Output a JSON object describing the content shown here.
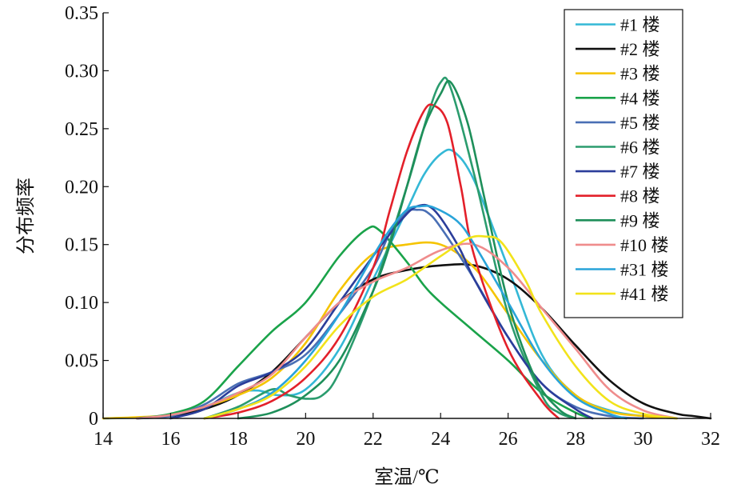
{
  "chart_data": {
    "type": "line",
    "xlabel": "室温/℃",
    "ylabel": "分布频率",
    "xlim": [
      14,
      32
    ],
    "ylim": [
      0,
      0.35
    ],
    "x_ticks": [
      "14",
      "16",
      "18",
      "20",
      "22",
      "24",
      "26",
      "28",
      "30",
      "32"
    ],
    "y_ticks": [
      "0",
      "0.05",
      "0.10",
      "0.15",
      "0.20",
      "0.25",
      "0.30",
      "0.35"
    ],
    "x_tick_values": [
      14,
      16,
      18,
      20,
      22,
      24,
      26,
      28,
      30,
      32
    ],
    "y_tick_values": [
      0,
      0.05,
      0.1,
      0.15,
      0.2,
      0.25,
      0.3,
      0.35
    ],
    "legend_position": "top-right",
    "grid": false,
    "series": [
      {
        "name": "#1 楼",
        "color": "#34b8d6",
        "x": [
          14,
          16,
          17,
          18,
          18.6,
          19.2,
          20,
          21,
          22,
          23,
          23.5,
          24,
          24.4,
          25,
          26,
          27,
          28,
          29,
          30,
          31
        ],
        "y": [
          0,
          0.002,
          0.01,
          0.022,
          0.024,
          0.02,
          0.025,
          0.06,
          0.12,
          0.18,
          0.21,
          0.228,
          0.23,
          0.205,
          0.13,
          0.055,
          0.02,
          0.007,
          0.002,
          0
        ]
      },
      {
        "name": "#2 楼",
        "color": "#111111",
        "x": [
          15,
          16,
          17,
          18,
          19,
          20,
          21,
          22,
          23,
          24,
          25,
          26,
          27,
          28,
          29,
          30,
          31,
          31.5,
          32
        ],
        "y": [
          0,
          0.002,
          0.008,
          0.02,
          0.04,
          0.07,
          0.1,
          0.12,
          0.128,
          0.132,
          0.132,
          0.12,
          0.095,
          0.063,
          0.033,
          0.013,
          0.004,
          0.002,
          0
        ]
      },
      {
        "name": "#3 楼",
        "color": "#f5c400",
        "x": [
          14,
          15,
          16,
          17,
          18,
          19,
          20,
          21,
          22,
          23,
          24,
          25,
          26,
          27,
          28,
          29,
          30,
          31
        ],
        "y": [
          0,
          0.001,
          0.003,
          0.01,
          0.02,
          0.035,
          0.065,
          0.11,
          0.142,
          0.15,
          0.15,
          0.13,
          0.09,
          0.05,
          0.02,
          0.006,
          0.002,
          0
        ]
      },
      {
        "name": "#4 楼",
        "color": "#1aa34a",
        "x": [
          15,
          16,
          17,
          18,
          19,
          20,
          21,
          21.8,
          22.2,
          23,
          23.5,
          24,
          25,
          26,
          27,
          28,
          28.5
        ],
        "y": [
          0,
          0.004,
          0.015,
          0.045,
          0.075,
          0.1,
          0.14,
          0.163,
          0.162,
          0.135,
          0.115,
          0.1,
          0.075,
          0.05,
          0.022,
          0.005,
          0
        ]
      },
      {
        "name": "#5 楼",
        "color": "#4a6fb5",
        "x": [
          15,
          16,
          17,
          18,
          19,
          20,
          21,
          22,
          22.5,
          23,
          23.3,
          23.6,
          24,
          25,
          26,
          27,
          28,
          29,
          30
        ],
        "y": [
          0,
          0.002,
          0.012,
          0.03,
          0.04,
          0.055,
          0.09,
          0.13,
          0.16,
          0.178,
          0.18,
          0.178,
          0.165,
          0.12,
          0.07,
          0.03,
          0.01,
          0.002,
          0
        ]
      },
      {
        "name": "#6 楼",
        "color": "#2b9c6e",
        "x": [
          17,
          18,
          19,
          19.5,
          20,
          20.5,
          21,
          22,
          23,
          23.6,
          24,
          24.3,
          25,
          26,
          27,
          27.5,
          28
        ],
        "y": [
          0,
          0.01,
          0.025,
          0.02,
          0.017,
          0.02,
          0.04,
          0.11,
          0.2,
          0.26,
          0.29,
          0.285,
          0.21,
          0.09,
          0.02,
          0.005,
          0
        ]
      },
      {
        "name": "#7 楼",
        "color": "#2b3d9a",
        "x": [
          16,
          17,
          18,
          19,
          20,
          21,
          22,
          22.8,
          23.3,
          23.8,
          24.5,
          25,
          26,
          27,
          28,
          28.5
        ],
        "y": [
          0,
          0.008,
          0.028,
          0.04,
          0.06,
          0.1,
          0.14,
          0.17,
          0.183,
          0.18,
          0.15,
          0.12,
          0.07,
          0.03,
          0.008,
          0
        ]
      },
      {
        "name": "#8 楼",
        "color": "#e3202a",
        "x": [
          17,
          18,
          19,
          20,
          21,
          22,
          22.5,
          23,
          23.5,
          23.8,
          24.2,
          24.6,
          25,
          26,
          27,
          27.5
        ],
        "y": [
          0,
          0.005,
          0.015,
          0.035,
          0.07,
          0.13,
          0.18,
          0.23,
          0.265,
          0.27,
          0.255,
          0.2,
          0.14,
          0.06,
          0.015,
          0
        ]
      },
      {
        "name": "#9 楼",
        "color": "#1e8f5a",
        "x": [
          18,
          19,
          20,
          21,
          22,
          22.5,
          23,
          23.5,
          24,
          24.3,
          24.8,
          25.3,
          26,
          26.8,
          27.5,
          28
        ],
        "y": [
          0,
          0.005,
          0.02,
          0.05,
          0.11,
          0.15,
          0.2,
          0.25,
          0.28,
          0.29,
          0.255,
          0.19,
          0.1,
          0.035,
          0.008,
          0
        ]
      },
      {
        "name": "#10 楼",
        "color": "#ef8c8c",
        "x": [
          15,
          16,
          17,
          18,
          19,
          20,
          21,
          22,
          23,
          24,
          25,
          26,
          27,
          28,
          29,
          30,
          31
        ],
        "y": [
          0,
          0.003,
          0.01,
          0.022,
          0.038,
          0.07,
          0.1,
          0.118,
          0.13,
          0.145,
          0.15,
          0.13,
          0.095,
          0.06,
          0.025,
          0.007,
          0
        ]
      },
      {
        "name": "#31 楼",
        "color": "#29a4d9",
        "x": [
          17,
          18,
          19,
          20,
          21,
          22,
          22.5,
          23,
          23.4,
          23.8,
          24.5,
          25,
          26,
          27,
          28,
          29,
          29.5
        ],
        "y": [
          0,
          0.008,
          0.022,
          0.05,
          0.09,
          0.14,
          0.163,
          0.18,
          0.183,
          0.182,
          0.17,
          0.15,
          0.1,
          0.05,
          0.018,
          0.004,
          0
        ]
      },
      {
        "name": "#41 楼",
        "color": "#f2e31b",
        "x": [
          17,
          18,
          19,
          20,
          21,
          22,
          23,
          24,
          24.8,
          25.3,
          25.8,
          26.5,
          27,
          28,
          29,
          30,
          31
        ],
        "y": [
          0,
          0.008,
          0.02,
          0.045,
          0.08,
          0.105,
          0.12,
          0.14,
          0.155,
          0.157,
          0.152,
          0.12,
          0.09,
          0.045,
          0.015,
          0.004,
          0
        ]
      }
    ]
  }
}
